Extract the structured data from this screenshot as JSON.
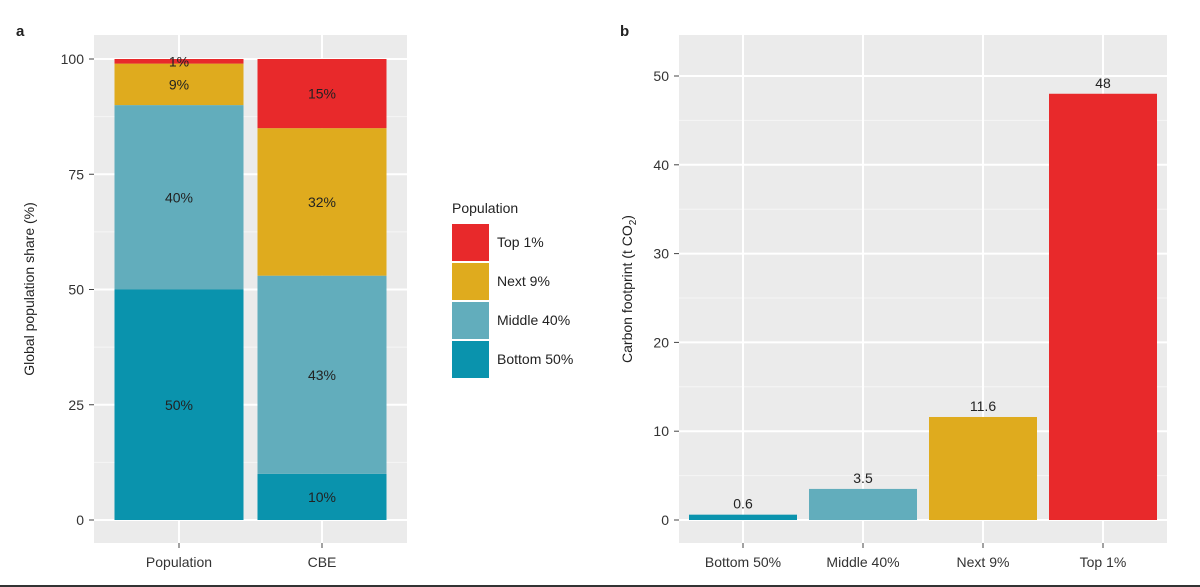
{
  "chart_data": [
    {
      "type": "bar",
      "stacked": true,
      "panel_label": "a",
      "categories": [
        "Population",
        "CBE"
      ],
      "ylabel": "Global population share (%)",
      "xlabel": "",
      "ylim": [
        0,
        100
      ],
      "yticks": [
        0,
        25,
        50,
        75,
        100
      ],
      "grid": true,
      "series": [
        {
          "name": "Bottom 50%",
          "color": "#0a93ad",
          "values": [
            50,
            10
          ],
          "labels": [
            "50%",
            "10%"
          ]
        },
        {
          "name": "Middle 40%",
          "color": "#62adbc",
          "values": [
            40,
            43
          ],
          "labels": [
            "40%",
            "43%"
          ]
        },
        {
          "name": "Next 9%",
          "color": "#dfab1e",
          "values": [
            9,
            32
          ],
          "labels": [
            "9%",
            "32%"
          ]
        },
        {
          "name": "Top 1%",
          "color": "#e8292b",
          "values": [
            1,
            15
          ],
          "labels": [
            "1%",
            "15%"
          ]
        }
      ],
      "legend": {
        "title": "Population",
        "placement": "right",
        "entries": [
          {
            "label": "Top 1%",
            "color": "#e8292b"
          },
          {
            "label": "Next 9%",
            "color": "#dfab1e"
          },
          {
            "label": "Middle 40%",
            "color": "#62adbc"
          },
          {
            "label": "Bottom 50%",
            "color": "#0a93ad"
          }
        ]
      }
    },
    {
      "type": "bar",
      "panel_label": "b",
      "categories": [
        "Bottom 50%",
        "Middle 40%",
        "Next 9%",
        "Top 1%"
      ],
      "values": [
        0.6,
        3.5,
        11.6,
        48
      ],
      "value_labels": [
        "0.6",
        "3.5",
        "11.6",
        "48"
      ],
      "colors": [
        "#0a93ad",
        "#62adbc",
        "#dfab1e",
        "#e8292b"
      ],
      "ylabel_main": "Carbon footprint (t CO",
      "ylabel_sub": "2",
      "ylabel_end": ")",
      "xlabel": "",
      "ylim": [
        -2.7,
        55.8
      ],
      "yticks": [
        0,
        10,
        20,
        30,
        40,
        50
      ],
      "grid": true
    }
  ]
}
